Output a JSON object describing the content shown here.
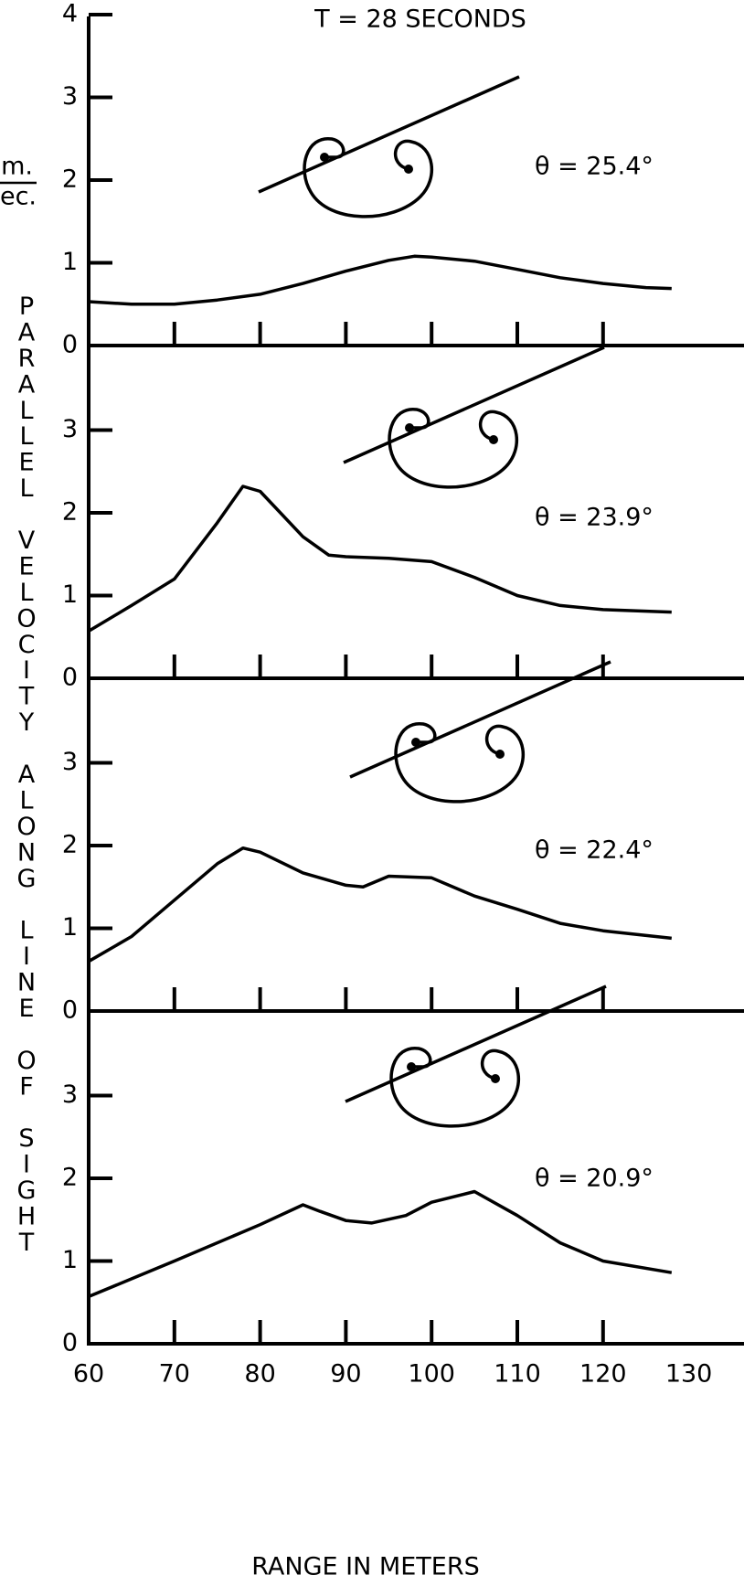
{
  "chart_data": [
    {
      "type": "line",
      "title": "T = 28 SECONDS",
      "ylabel": "PARALLEL VELOCITY ALONG LINE OF SIGHT",
      "yunit_top": "m.",
      "yunit_bottom": "sec.",
      "annotation": "θ = 25.4°",
      "x": [
        60,
        65,
        70,
        75,
        80,
        85,
        90,
        95,
        98,
        100,
        105,
        110,
        115,
        120,
        125,
        128
      ],
      "values": [
        0.53,
        0.5,
        0.5,
        0.55,
        0.62,
        0.75,
        0.9,
        1.03,
        1.08,
        1.07,
        1.02,
        0.92,
        0.82,
        0.75,
        0.7,
        0.69
      ],
      "xlim": [
        60,
        130
      ],
      "xticks": [
        60,
        70,
        80,
        90,
        100,
        110,
        120,
        130
      ],
      "xticklabels": false,
      "ylim": [
        0,
        4
      ],
      "yticks": [
        0,
        1,
        2,
        3,
        4
      ],
      "color": "#000000"
    },
    {
      "type": "line",
      "annotation": "θ = 23.9°",
      "x": [
        60,
        65,
        70,
        75,
        78,
        80,
        85,
        88,
        90,
        95,
        100,
        105,
        110,
        115,
        120,
        128
      ],
      "values": [
        0.57,
        0.88,
        1.2,
        1.88,
        2.32,
        2.26,
        1.71,
        1.49,
        1.47,
        1.45,
        1.41,
        1.22,
        1.0,
        0.88,
        0.83,
        0.8
      ],
      "xlim": [
        60,
        130
      ],
      "xticks": [
        60,
        70,
        80,
        90,
        100,
        110,
        120,
        130
      ],
      "xticklabels": false,
      "ylim": [
        0,
        4
      ],
      "yticks": [
        0,
        1,
        2,
        3
      ],
      "color": "#000000"
    },
    {
      "type": "line",
      "annotation": "θ = 22.4°",
      "x": [
        60,
        65,
        70,
        75,
        78,
        80,
        85,
        90,
        92,
        95,
        100,
        105,
        110,
        115,
        120,
        128
      ],
      "values": [
        0.6,
        0.9,
        1.34,
        1.78,
        1.97,
        1.92,
        1.67,
        1.52,
        1.5,
        1.63,
        1.61,
        1.39,
        1.23,
        1.06,
        0.97,
        0.88
      ],
      "xlim": [
        60,
        130
      ],
      "xticks": [
        60,
        70,
        80,
        90,
        100,
        110,
        120,
        130
      ],
      "xticklabels": false,
      "ylim": [
        0,
        4
      ],
      "yticks": [
        0,
        1,
        2,
        3
      ],
      "color": "#000000"
    },
    {
      "type": "line",
      "annotation": "θ = 20.9°",
      "xlabel": "RANGE IN METERS",
      "x": [
        60,
        70,
        80,
        85,
        87,
        90,
        93,
        97,
        100,
        105,
        110,
        115,
        120,
        128
      ],
      "values": [
        0.57,
        1.0,
        1.44,
        1.68,
        1.6,
        1.49,
        1.46,
        1.55,
        1.71,
        1.84,
        1.55,
        1.22,
        1.0,
        0.86
      ],
      "xlim": [
        60,
        130
      ],
      "xticks": [
        60,
        70,
        80,
        90,
        100,
        110,
        120,
        130
      ],
      "xticklabels": true,
      "ylim": [
        0,
        4
      ],
      "yticks": [
        0,
        1,
        2,
        3
      ],
      "color": "#000000"
    }
  ]
}
